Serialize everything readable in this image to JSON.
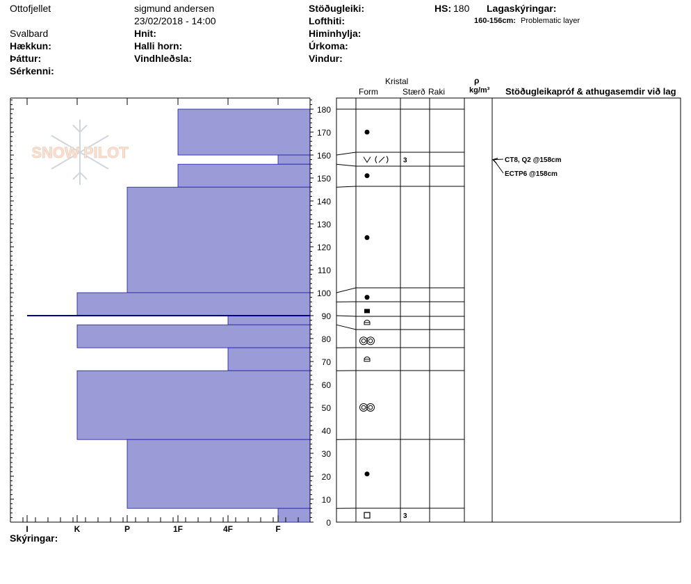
{
  "header": {
    "location": "Ottofjellet",
    "region": "Svalbard",
    "observer": "sigmund andersen",
    "datetime": "23/02/2018 - 14:00",
    "elevation_label": "Hækkun:",
    "aspect_label": "Þáttur:",
    "features_label": "Sérkenni:",
    "coords_label": "Hnit:",
    "slope_label": "Halli horn:",
    "wind_loading_label": "Vindhleðsla:",
    "stability_label": "Stöðugleiki:",
    "air_temp_label": "Lofthiti:",
    "sky_label": "Himinhylja:",
    "precip_label": "Úrkoma:",
    "wind_label": "Vindur:",
    "hs_label": "HS:",
    "hs_value": "180",
    "layer_notes_label": "Lagaskýringar:",
    "layer_note_range": "160-156cm:",
    "layer_note_text": "Problematic layer",
    "logo_text": "SNOW PILOT"
  },
  "columns": {
    "crystal": "Kristal",
    "form": "Form",
    "size": "Stærð",
    "moisture": "Raki",
    "rho": "ρ",
    "density_unit": "kg/m³",
    "tests": "Stöðugleikapróf & athugasemdir við lag"
  },
  "footer": {
    "notes_label": "Skýringar:"
  },
  "chart_data": {
    "type": "bar",
    "orientation": "horizontal",
    "y_range": [
      0,
      180
    ],
    "y_ticks": [
      0,
      10,
      20,
      30,
      40,
      50,
      60,
      70,
      80,
      90,
      100,
      110,
      120,
      130,
      140,
      150,
      160,
      170,
      180
    ],
    "hardness_scale": [
      "I",
      "K",
      "P",
      "1F",
      "4F",
      "F"
    ],
    "layers": [
      {
        "top": 180,
        "bottom": 160,
        "hardness": "1F",
        "form": "dot",
        "size": ""
      },
      {
        "top": 160,
        "bottom": 156,
        "hardness": "F",
        "form": "facet",
        "size": "3"
      },
      {
        "top": 156,
        "bottom": 146,
        "hardness": "1F",
        "form": "dot",
        "size": ""
      },
      {
        "top": 146,
        "bottom": 100,
        "hardness": "P",
        "form": "dot",
        "size": ""
      },
      {
        "top": 100,
        "bottom": 90,
        "hardness": "K",
        "form": "dot-square",
        "size": ""
      },
      {
        "top": 90,
        "bottom": 86,
        "hardness": "4F",
        "form": "lens",
        "size": ""
      },
      {
        "top": 86,
        "bottom": 76,
        "hardness": "K",
        "form": "melt",
        "size": ""
      },
      {
        "top": 76,
        "bottom": 66,
        "hardness": "4F",
        "form": "lens",
        "size": ""
      },
      {
        "top": 66,
        "bottom": 36,
        "hardness": "K",
        "form": "melt",
        "size": ""
      },
      {
        "top": 36,
        "bottom": 6,
        "hardness": "P",
        "form": "dot",
        "size": ""
      },
      {
        "top": 6,
        "bottom": 0,
        "hardness": "F",
        "form": "square",
        "size": "3"
      }
    ],
    "row_symbols": [
      {
        "y": 170,
        "form": "dot"
      },
      {
        "y": 158,
        "form": "facet",
        "size": "3"
      },
      {
        "y": 151,
        "form": "dot"
      },
      {
        "y": 124,
        "form": "dot"
      },
      {
        "y": 98,
        "form": "dot"
      },
      {
        "y": 92,
        "form": "square-solid"
      },
      {
        "y": 87,
        "form": "lens"
      },
      {
        "y": 79,
        "form": "melt"
      },
      {
        "y": 71,
        "form": "lens"
      },
      {
        "y": 50,
        "form": "melt"
      },
      {
        "y": 21,
        "form": "dot"
      },
      {
        "y": 3,
        "form": "square",
        "size": "3"
      }
    ],
    "tests": [
      {
        "text": "CT8, Q2 @158cm",
        "depth": 158
      },
      {
        "text": "ECTP6 @158cm",
        "depth": 158
      }
    ],
    "marker_line_cm": 90
  }
}
